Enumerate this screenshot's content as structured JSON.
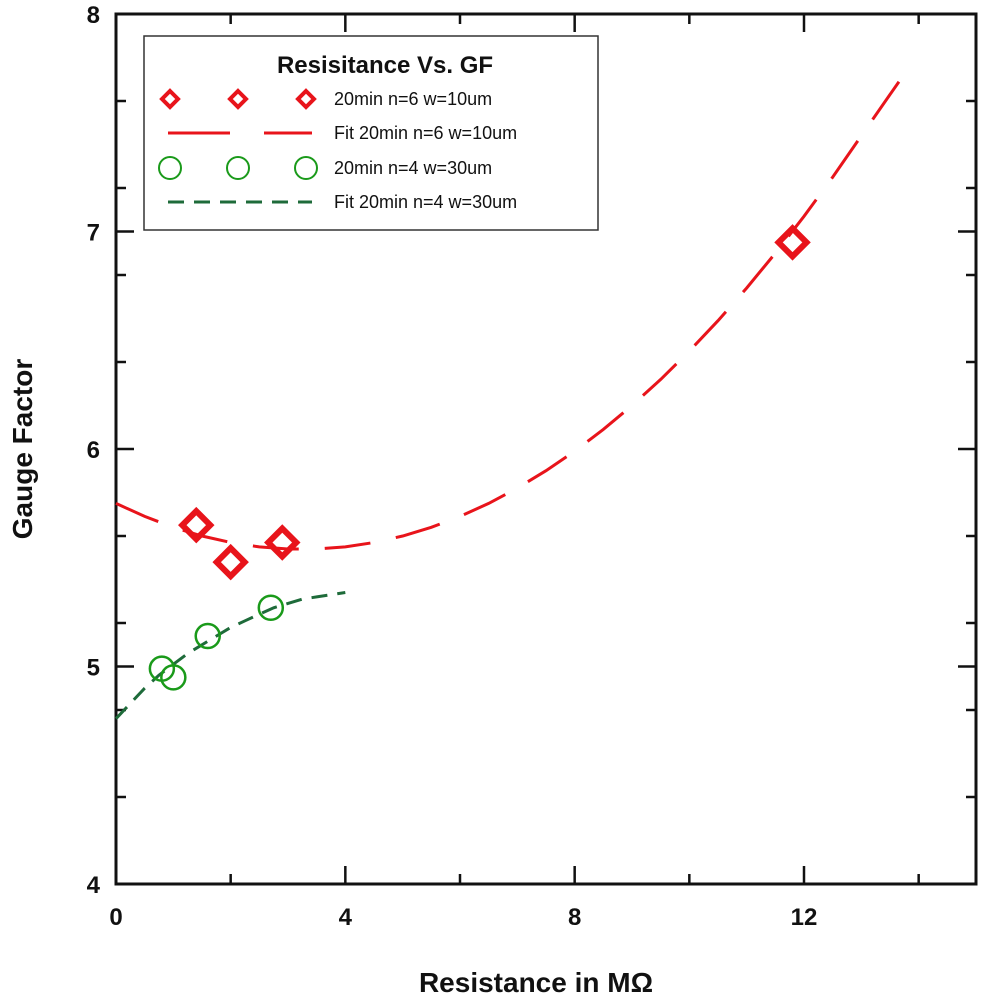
{
  "chart_data": {
    "type": "scatter",
    "title": "Resisitance Vs. GF",
    "xlabel": "Resistance in MΩ",
    "ylabel": "Gauge Factor",
    "xlim": [
      0,
      15
    ],
    "ylim": [
      4,
      8
    ],
    "x_ticks": [
      0,
      4,
      8,
      12
    ],
    "y_ticks": [
      4,
      5,
      6,
      7,
      8
    ],
    "x_minor_ticks": [
      2,
      6,
      10,
      14
    ],
    "y_minor_ticks": [
      4.4,
      4.8,
      5.2,
      5.6,
      6.4,
      6.8,
      7.2,
      7.6
    ],
    "legend_position": "top-left",
    "series": [
      {
        "name": "20min n=6 w=10um",
        "kind": "points",
        "marker": "diamond",
        "color": "#e8141b",
        "x": [
          1.4,
          2.0,
          2.9,
          11.8
        ],
        "y": [
          5.65,
          5.48,
          5.57,
          6.95
        ]
      },
      {
        "name": "Fit 20min n=6 w=10um",
        "kind": "fit",
        "style": "long-dash",
        "color": "#e8141b",
        "x": [
          0,
          0.5,
          1.0,
          1.5,
          2.0,
          2.5,
          3.0,
          3.5,
          4.0,
          4.5,
          5.0,
          5.5,
          6.0,
          6.5,
          7.0,
          7.5,
          8.0,
          8.5,
          9.0,
          9.5,
          10.0,
          10.5,
          11.0,
          11.5,
          12.0,
          12.5,
          13.0,
          13.5,
          13.9
        ],
        "y": [
          5.75,
          5.69,
          5.64,
          5.6,
          5.57,
          5.55,
          5.54,
          5.54,
          5.55,
          5.57,
          5.6,
          5.64,
          5.69,
          5.75,
          5.82,
          5.9,
          5.99,
          6.09,
          6.2,
          6.32,
          6.45,
          6.59,
          6.74,
          6.9,
          7.07,
          7.25,
          7.44,
          7.63,
          7.78
        ]
      },
      {
        "name": "20min n=4 w=30um",
        "kind": "points",
        "marker": "circle",
        "color": "#1a9a1a",
        "x": [
          0.8,
          1.0,
          1.6,
          2.7
        ],
        "y": [
          4.99,
          4.95,
          5.14,
          5.27
        ]
      },
      {
        "name": "Fit 20min n=4 w=30um",
        "kind": "fit",
        "style": "short-dash",
        "color": "#1e6b3a",
        "x": [
          0,
          0.25,
          0.5,
          0.75,
          1.0,
          1.25,
          1.5,
          1.75,
          2.0,
          2.25,
          2.5,
          2.75,
          3.0,
          3.25,
          3.5,
          3.75,
          4.0
        ],
        "y": [
          4.76,
          4.83,
          4.9,
          4.96,
          5.01,
          5.06,
          5.1,
          5.14,
          5.18,
          5.21,
          5.24,
          5.27,
          5.29,
          5.31,
          5.32,
          5.33,
          5.34
        ]
      }
    ]
  }
}
